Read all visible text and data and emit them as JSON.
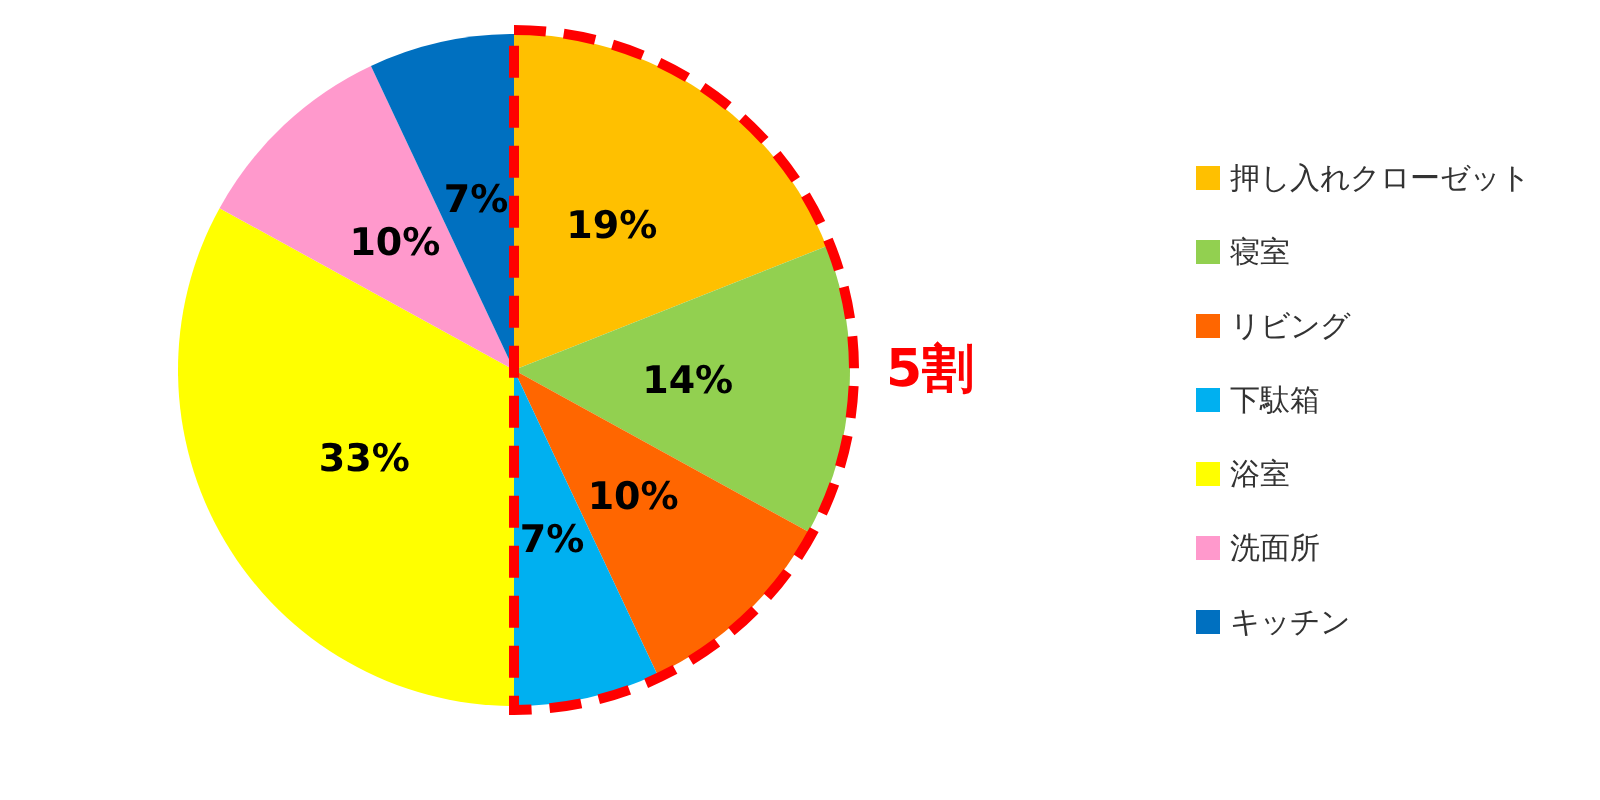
{
  "chart_data": {
    "type": "pie",
    "categories": [
      "押し入れクローゼット",
      "寝室",
      "リビング",
      "下駄箱",
      "浴室",
      "洗面所",
      "キッチン"
    ],
    "values": [
      19,
      14,
      10,
      7,
      33,
      10,
      7
    ],
    "colors": [
      "#ffc000",
      "#92d050",
      "#ff6600",
      "#00b0f0",
      "#ffff00",
      "#ff99cc",
      "#0070c0"
    ],
    "value_labels": [
      "19%",
      "14%",
      "10%",
      "7%",
      "33%",
      "10%",
      "7%"
    ],
    "legend": "right",
    "annotations": [
      "5割"
    ]
  }
}
